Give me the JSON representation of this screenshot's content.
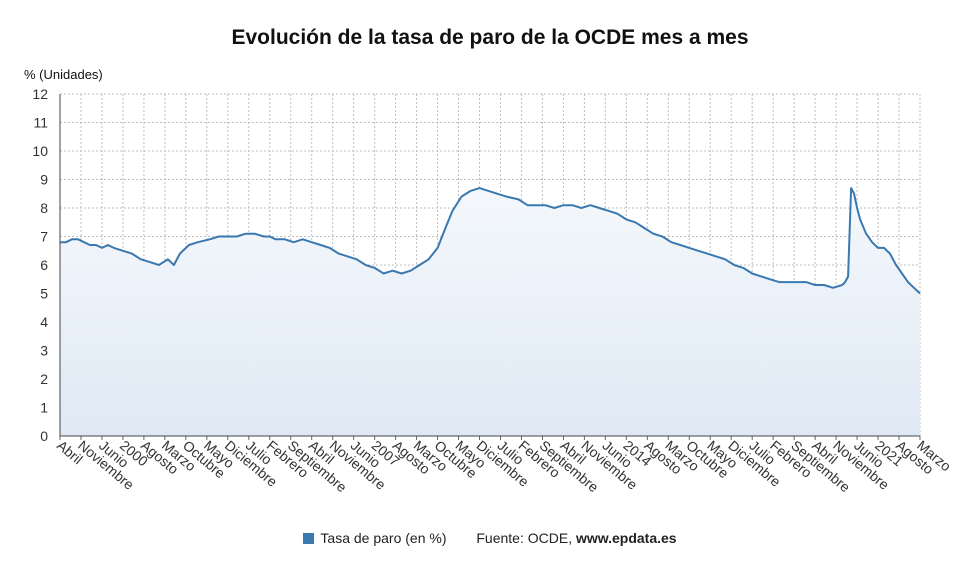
{
  "chart_data": {
    "type": "area",
    "title": "Evolución de la tasa de paro de la OCDE mes a mes",
    "ylabel": "% (Unidades)",
    "ylim": [
      0,
      12
    ],
    "y_ticks": [
      0,
      1,
      2,
      3,
      4,
      5,
      6,
      7,
      8,
      9,
      10,
      11,
      12
    ],
    "x_range": [
      "1998-04",
      "2022-03"
    ],
    "x_tick_labels": [
      {
        "date": "1998-04",
        "label": "Abril"
      },
      {
        "date": "1998-11",
        "label": "Noviembre"
      },
      {
        "date": "1999-06",
        "label": "Junio"
      },
      {
        "date": "2000-01",
        "label": "2000"
      },
      {
        "date": "2000-08",
        "label": "Agosto"
      },
      {
        "date": "2001-03",
        "label": "Marzo"
      },
      {
        "date": "2001-10",
        "label": "Octubre"
      },
      {
        "date": "2002-05",
        "label": "Mayo"
      },
      {
        "date": "2002-12",
        "label": "Diciembre"
      },
      {
        "date": "2003-07",
        "label": "Julio"
      },
      {
        "date": "2004-02",
        "label": "Febrero"
      },
      {
        "date": "2004-09",
        "label": "Septiembre"
      },
      {
        "date": "2005-04",
        "label": "Abril"
      },
      {
        "date": "2005-11",
        "label": "Noviembre"
      },
      {
        "date": "2006-06",
        "label": "Junio"
      },
      {
        "date": "2007-01",
        "label": "2007"
      },
      {
        "date": "2007-08",
        "label": "Agosto"
      },
      {
        "date": "2008-03",
        "label": "Marzo"
      },
      {
        "date": "2008-10",
        "label": "Octubre"
      },
      {
        "date": "2009-05",
        "label": "Mayo"
      },
      {
        "date": "2009-12",
        "label": "Diciembre"
      },
      {
        "date": "2010-07",
        "label": "Julio"
      },
      {
        "date": "2011-02",
        "label": "Febrero"
      },
      {
        "date": "2011-09",
        "label": "Septiembre"
      },
      {
        "date": "2012-04",
        "label": "Abril"
      },
      {
        "date": "2012-11",
        "label": "Noviembre"
      },
      {
        "date": "2013-06",
        "label": "Junio"
      },
      {
        "date": "2014-01",
        "label": "2014"
      },
      {
        "date": "2014-08",
        "label": "Agosto"
      },
      {
        "date": "2015-03",
        "label": "Marzo"
      },
      {
        "date": "2015-10",
        "label": "Octubre"
      },
      {
        "date": "2016-05",
        "label": "Mayo"
      },
      {
        "date": "2016-12",
        "label": "Diciembre"
      },
      {
        "date": "2017-07",
        "label": "Julio"
      },
      {
        "date": "2018-02",
        "label": "Febrero"
      },
      {
        "date": "2018-09",
        "label": "Septiembre"
      },
      {
        "date": "2019-04",
        "label": "Abril"
      },
      {
        "date": "2019-11",
        "label": "Noviembre"
      },
      {
        "date": "2020-06",
        "label": "Junio"
      },
      {
        "date": "2021-01",
        "label": "2021"
      },
      {
        "date": "2021-08",
        "label": "Agosto"
      },
      {
        "date": "2022-03",
        "label": "Marzo"
      }
    ],
    "grid": true,
    "legend_position": "bottom",
    "series": [
      {
        "name": "Tasa de paro (en %)",
        "color": "#3a78b0",
        "points": [
          [
            "1998-04",
            6.8
          ],
          [
            "1998-06",
            6.8
          ],
          [
            "1998-08",
            6.9
          ],
          [
            "1998-10",
            6.9
          ],
          [
            "1998-12",
            6.8
          ],
          [
            "1999-02",
            6.7
          ],
          [
            "1999-04",
            6.7
          ],
          [
            "1999-06",
            6.6
          ],
          [
            "1999-08",
            6.7
          ],
          [
            "1999-10",
            6.6
          ],
          [
            "2000-01",
            6.5
          ],
          [
            "2000-04",
            6.4
          ],
          [
            "2000-07",
            6.2
          ],
          [
            "2000-10",
            6.1
          ],
          [
            "2001-01",
            6.0
          ],
          [
            "2001-04",
            6.2
          ],
          [
            "2001-06",
            6.0
          ],
          [
            "2001-08",
            6.4
          ],
          [
            "2001-11",
            6.7
          ],
          [
            "2002-02",
            6.8
          ],
          [
            "2002-06",
            6.9
          ],
          [
            "2002-09",
            7.0
          ],
          [
            "2002-12",
            7.0
          ],
          [
            "2003-03",
            7.0
          ],
          [
            "2003-06",
            7.1
          ],
          [
            "2003-09",
            7.1
          ],
          [
            "2003-12",
            7.0
          ],
          [
            "2004-02",
            7.0
          ],
          [
            "2004-04",
            6.9
          ],
          [
            "2004-07",
            6.9
          ],
          [
            "2004-10",
            6.8
          ],
          [
            "2005-01",
            6.9
          ],
          [
            "2005-04",
            6.8
          ],
          [
            "2005-07",
            6.7
          ],
          [
            "2005-10",
            6.6
          ],
          [
            "2006-01",
            6.4
          ],
          [
            "2006-04",
            6.3
          ],
          [
            "2006-07",
            6.2
          ],
          [
            "2006-10",
            6.0
          ],
          [
            "2007-01",
            5.9
          ],
          [
            "2007-04",
            5.7
          ],
          [
            "2007-07",
            5.8
          ],
          [
            "2007-10",
            5.7
          ],
          [
            "2008-01",
            5.8
          ],
          [
            "2008-04",
            6.0
          ],
          [
            "2008-07",
            6.2
          ],
          [
            "2008-10",
            6.6
          ],
          [
            "2009-01",
            7.4
          ],
          [
            "2009-03",
            7.9
          ],
          [
            "2009-06",
            8.4
          ],
          [
            "2009-09",
            8.6
          ],
          [
            "2009-12",
            8.7
          ],
          [
            "2010-03",
            8.6
          ],
          [
            "2010-06",
            8.5
          ],
          [
            "2010-09",
            8.4
          ],
          [
            "2011-01",
            8.3
          ],
          [
            "2011-04",
            8.1
          ],
          [
            "2011-07",
            8.1
          ],
          [
            "2011-10",
            8.1
          ],
          [
            "2012-01",
            8.0
          ],
          [
            "2012-04",
            8.1
          ],
          [
            "2012-07",
            8.1
          ],
          [
            "2012-10",
            8.0
          ],
          [
            "2013-01",
            8.1
          ],
          [
            "2013-04",
            8.0
          ],
          [
            "2013-07",
            7.9
          ],
          [
            "2013-10",
            7.8
          ],
          [
            "2014-01",
            7.6
          ],
          [
            "2014-04",
            7.5
          ],
          [
            "2014-07",
            7.3
          ],
          [
            "2014-10",
            7.1
          ],
          [
            "2015-01",
            7.0
          ],
          [
            "2015-04",
            6.8
          ],
          [
            "2015-07",
            6.7
          ],
          [
            "2015-10",
            6.6
          ],
          [
            "2016-01",
            6.5
          ],
          [
            "2016-04",
            6.4
          ],
          [
            "2016-07",
            6.3
          ],
          [
            "2016-10",
            6.2
          ],
          [
            "2017-01",
            6.0
          ],
          [
            "2017-04",
            5.9
          ],
          [
            "2017-07",
            5.7
          ],
          [
            "2017-10",
            5.6
          ],
          [
            "2018-01",
            5.5
          ],
          [
            "2018-04",
            5.4
          ],
          [
            "2018-07",
            5.4
          ],
          [
            "2018-10",
            5.4
          ],
          [
            "2019-01",
            5.4
          ],
          [
            "2019-04",
            5.3
          ],
          [
            "2019-07",
            5.3
          ],
          [
            "2019-10",
            5.2
          ],
          [
            "2020-01",
            5.3
          ],
          [
            "2020-02",
            5.4
          ],
          [
            "2020-03",
            5.6
          ],
          [
            "2020-04",
            8.7
          ],
          [
            "2020-05",
            8.5
          ],
          [
            "2020-06",
            8.0
          ],
          [
            "2020-07",
            7.6
          ],
          [
            "2020-09",
            7.1
          ],
          [
            "2020-11",
            6.8
          ],
          [
            "2021-01",
            6.6
          ],
          [
            "2021-03",
            6.6
          ],
          [
            "2021-05",
            6.4
          ],
          [
            "2021-07",
            6.0
          ],
          [
            "2021-09",
            5.7
          ],
          [
            "2021-11",
            5.4
          ],
          [
            "2022-01",
            5.2
          ],
          [
            "2022-03",
            5.0
          ]
        ]
      }
    ]
  },
  "footer": {
    "legend_label": "Tasa de paro (en %)",
    "source_prefix": "Fuente: OCDE, ",
    "source_site": "www.epdata.es"
  }
}
